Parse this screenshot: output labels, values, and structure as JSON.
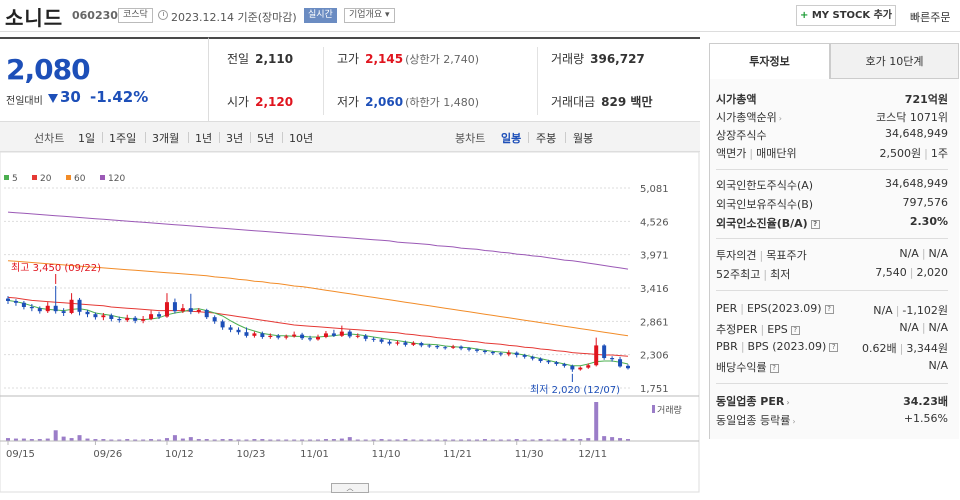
{
  "header": {
    "name": "소니드",
    "code": "060230",
    "market": "코스닥",
    "base_date": "2023.12.14 기준(장마감)",
    "realtime": "실시간",
    "company_overview": "기업개요 ▾",
    "mystock_label": "MY STOCK 추가",
    "quick_order": "빠른주문"
  },
  "price": {
    "current": "2,080",
    "change_label": "전일대비",
    "change": "30",
    "change_pct": "-1.42%"
  },
  "stats": {
    "prev_label": "전일",
    "prev": "2,110",
    "high_label": "고가",
    "high": "2,145",
    "upper_limit": "(상한가 2,740)",
    "volume_label": "거래량",
    "volume": "396,727",
    "open_label": "시가",
    "open": "2,120",
    "low_label": "저가",
    "low": "2,060",
    "lower_limit": "(하한가 1,480)",
    "amount_label": "거래대금",
    "amount": "829 백만"
  },
  "toolbar": {
    "line_label": "선차트",
    "periods": [
      "1일",
      "1주일",
      "3개월",
      "1년",
      "3년",
      "5년",
      "10년"
    ],
    "candle_label": "봉차트",
    "candles": [
      "일봉",
      "주봉",
      "월봉"
    ],
    "active_candle": "일봉"
  },
  "chart_data": {
    "type": "candlestick",
    "legend": [
      "5",
      "20",
      "60",
      "120"
    ],
    "legend_colors": [
      "#4caf50",
      "#e53935",
      "#f28c28",
      "#9b59b6"
    ],
    "y_ticks": [
      "5,081",
      "4,526",
      "3,971",
      "3,416",
      "2,861",
      "2,306",
      "1,751"
    ],
    "y_tick_values": [
      5081,
      4526,
      3971,
      3416,
      2861,
      2306,
      1751
    ],
    "x_labels": [
      "09/15",
      "09/26",
      "10/12",
      "10/23",
      "11/01",
      "11/10",
      "11/21",
      "11/30",
      "12/11"
    ],
    "volume_label": "거래량",
    "high_annotation": "최고 3,450 (09/22)",
    "low_annotation": "최저 2,020 (12/07)",
    "candles": [
      {
        "o": 3240,
        "c": 3200,
        "h": 3280,
        "l": 3150
      },
      {
        "o": 3200,
        "c": 3170,
        "h": 3230,
        "l": 3120
      },
      {
        "o": 3170,
        "c": 3100,
        "h": 3200,
        "l": 3060
      },
      {
        "o": 3100,
        "c": 3080,
        "h": 3150,
        "l": 3030
      },
      {
        "o": 3080,
        "c": 3030,
        "h": 3110,
        "l": 2990
      },
      {
        "o": 3030,
        "c": 3120,
        "h": 3180,
        "l": 3000
      },
      {
        "o": 3120,
        "c": 3030,
        "h": 3450,
        "l": 2990
      },
      {
        "o": 3030,
        "c": 3000,
        "h": 3080,
        "l": 2950
      },
      {
        "o": 3000,
        "c": 3220,
        "h": 3330,
        "l": 2980
      },
      {
        "o": 3220,
        "c": 3020,
        "h": 3250,
        "l": 2960
      },
      {
        "o": 3020,
        "c": 2980,
        "h": 3050,
        "l": 2930
      },
      {
        "o": 2980,
        "c": 2930,
        "h": 3010,
        "l": 2890
      },
      {
        "o": 2930,
        "c": 2960,
        "h": 3000,
        "l": 2880
      },
      {
        "o": 2960,
        "c": 2900,
        "h": 2990,
        "l": 2860
      },
      {
        "o": 2900,
        "c": 2880,
        "h": 2940,
        "l": 2840
      },
      {
        "o": 2880,
        "c": 2920,
        "h": 2970,
        "l": 2850
      },
      {
        "o": 2920,
        "c": 2870,
        "h": 2950,
        "l": 2830
      },
      {
        "o": 2870,
        "c": 2900,
        "h": 2950,
        "l": 2830
      },
      {
        "o": 2900,
        "c": 2980,
        "h": 3040,
        "l": 2880
      },
      {
        "o": 2980,
        "c": 2940,
        "h": 3020,
        "l": 2900
      },
      {
        "o": 2940,
        "c": 3180,
        "h": 3330,
        "l": 2920
      },
      {
        "o": 3180,
        "c": 3030,
        "h": 3240,
        "l": 2990
      },
      {
        "o": 3030,
        "c": 3080,
        "h": 3150,
        "l": 3000
      },
      {
        "o": 3080,
        "c": 3020,
        "h": 3320,
        "l": 2980
      },
      {
        "o": 3020,
        "c": 3050,
        "h": 3080,
        "l": 2990
      },
      {
        "o": 3050,
        "c": 2930,
        "h": 3070,
        "l": 2900
      },
      {
        "o": 2930,
        "c": 2860,
        "h": 2960,
        "l": 2820
      },
      {
        "o": 2860,
        "c": 2760,
        "h": 2890,
        "l": 2720
      },
      {
        "o": 2760,
        "c": 2720,
        "h": 2800,
        "l": 2680
      },
      {
        "o": 2720,
        "c": 2680,
        "h": 2760,
        "l": 2640
      },
      {
        "o": 2680,
        "c": 2620,
        "h": 2760,
        "l": 2590
      },
      {
        "o": 2620,
        "c": 2660,
        "h": 2690,
        "l": 2590
      },
      {
        "o": 2660,
        "c": 2600,
        "h": 2690,
        "l": 2570
      },
      {
        "o": 2600,
        "c": 2620,
        "h": 2660,
        "l": 2570
      },
      {
        "o": 2620,
        "c": 2590,
        "h": 2650,
        "l": 2560
      },
      {
        "o": 2590,
        "c": 2610,
        "h": 2640,
        "l": 2560
      },
      {
        "o": 2610,
        "c": 2640,
        "h": 2690,
        "l": 2590
      },
      {
        "o": 2640,
        "c": 2580,
        "h": 2670,
        "l": 2550
      },
      {
        "o": 2580,
        "c": 2560,
        "h": 2620,
        "l": 2530
      },
      {
        "o": 2560,
        "c": 2600,
        "h": 2640,
        "l": 2540
      },
      {
        "o": 2600,
        "c": 2660,
        "h": 2700,
        "l": 2580
      },
      {
        "o": 2660,
        "c": 2620,
        "h": 2720,
        "l": 2600
      },
      {
        "o": 2620,
        "c": 2690,
        "h": 2790,
        "l": 2600
      },
      {
        "o": 2690,
        "c": 2610,
        "h": 2720,
        "l": 2580
      },
      {
        "o": 2610,
        "c": 2620,
        "h": 2660,
        "l": 2580
      },
      {
        "o": 2620,
        "c": 2570,
        "h": 2650,
        "l": 2530
      },
      {
        "o": 2570,
        "c": 2560,
        "h": 2600,
        "l": 2520
      },
      {
        "o": 2560,
        "c": 2520,
        "h": 2580,
        "l": 2490
      },
      {
        "o": 2520,
        "c": 2490,
        "h": 2550,
        "l": 2460
      },
      {
        "o": 2490,
        "c": 2510,
        "h": 2540,
        "l": 2460
      },
      {
        "o": 2510,
        "c": 2470,
        "h": 2540,
        "l": 2440
      },
      {
        "o": 2470,
        "c": 2500,
        "h": 2530,
        "l": 2450
      },
      {
        "o": 2500,
        "c": 2460,
        "h": 2520,
        "l": 2430
      },
      {
        "o": 2460,
        "c": 2450,
        "h": 2480,
        "l": 2420
      },
      {
        "o": 2450,
        "c": 2430,
        "h": 2470,
        "l": 2400
      },
      {
        "o": 2430,
        "c": 2420,
        "h": 2450,
        "l": 2390
      },
      {
        "o": 2420,
        "c": 2440,
        "h": 2470,
        "l": 2400
      },
      {
        "o": 2440,
        "c": 2410,
        "h": 2460,
        "l": 2380
      },
      {
        "o": 2410,
        "c": 2390,
        "h": 2430,
        "l": 2360
      },
      {
        "o": 2390,
        "c": 2370,
        "h": 2410,
        "l": 2340
      },
      {
        "o": 2370,
        "c": 2350,
        "h": 2390,
        "l": 2320
      },
      {
        "o": 2350,
        "c": 2330,
        "h": 2370,
        "l": 2300
      },
      {
        "o": 2330,
        "c": 2310,
        "h": 2350,
        "l": 2280
      },
      {
        "o": 2310,
        "c": 2340,
        "h": 2380,
        "l": 2280
      },
      {
        "o": 2340,
        "c": 2300,
        "h": 2360,
        "l": 2260
      },
      {
        "o": 2300,
        "c": 2270,
        "h": 2320,
        "l": 2240
      },
      {
        "o": 2270,
        "c": 2240,
        "h": 2290,
        "l": 2210
      },
      {
        "o": 2240,
        "c": 2200,
        "h": 2260,
        "l": 2170
      },
      {
        "o": 2200,
        "c": 2180,
        "h": 2220,
        "l": 2150
      },
      {
        "o": 2180,
        "c": 2150,
        "h": 2200,
        "l": 2120
      },
      {
        "o": 2150,
        "c": 2120,
        "h": 2170,
        "l": 2090
      },
      {
        "o": 2120,
        "c": 2060,
        "h": 2140,
        "l": 2020
      },
      {
        "o": 2060,
        "c": 2090,
        "h": 2110,
        "l": 2040
      },
      {
        "o": 2090,
        "c": 2130,
        "h": 2160,
        "l": 2070
      },
      {
        "o": 2130,
        "c": 2460,
        "h": 2590,
        "l": 2110
      },
      {
        "o": 2460,
        "c": 2250,
        "h": 2480,
        "l": 2220
      },
      {
        "o": 2250,
        "c": 2230,
        "h": 2280,
        "l": 2190
      },
      {
        "o": 2230,
        "c": 2110,
        "h": 2270,
        "l": 2090
      },
      {
        "o": 2120,
        "c": 2080,
        "h": 2145,
        "l": 2060
      }
    ],
    "ma5": [
      3210,
      3190,
      3160,
      3120,
      3080,
      3060,
      3050,
      3040,
      3060,
      3070,
      3050,
      3000,
      2980,
      2960,
      2930,
      2910,
      2900,
      2890,
      2900,
      2920,
      2970,
      3000,
      3020,
      3060,
      3070,
      3040,
      3000,
      2950,
      2870,
      2800,
      2740,
      2700,
      2660,
      2640,
      2620,
      2620,
      2610,
      2610,
      2600,
      2600,
      2610,
      2620,
      2640,
      2650,
      2640,
      2620,
      2600,
      2580,
      2560,
      2540,
      2520,
      2500,
      2480,
      2480,
      2470,
      2450,
      2440,
      2430,
      2420,
      2400,
      2380,
      2360,
      2350,
      2340,
      2320,
      2300,
      2270,
      2240,
      2210,
      2180,
      2150,
      2120,
      2120,
      2150,
      2190,
      2200,
      2200,
      2180,
      2150
    ],
    "ma20": [
      3260,
      3250,
      3230,
      3210,
      3200,
      3190,
      3180,
      3170,
      3160,
      3150,
      3140,
      3130,
      3120,
      3100,
      3090,
      3080,
      3070,
      3060,
      3050,
      3040,
      3040,
      3040,
      3040,
      3030,
      3020,
      3010,
      3000,
      2980,
      2960,
      2940,
      2920,
      2900,
      2880,
      2860,
      2840,
      2820,
      2800,
      2790,
      2780,
      2770,
      2760,
      2750,
      2740,
      2730,
      2720,
      2710,
      2700,
      2690,
      2680,
      2670,
      2650,
      2640,
      2620,
      2610,
      2590,
      2580,
      2560,
      2550,
      2530,
      2520,
      2500,
      2490,
      2480,
      2460,
      2450,
      2430,
      2420,
      2400,
      2390,
      2370,
      2360,
      2340,
      2330,
      2320,
      2310,
      2300,
      2300,
      2290,
      2280
    ],
    "ma60": [
      3870,
      3860,
      3850,
      3840,
      3830,
      3820,
      3810,
      3800,
      3790,
      3780,
      3770,
      3760,
      3750,
      3740,
      3730,
      3720,
      3710,
      3700,
      3690,
      3680,
      3670,
      3660,
      3650,
      3640,
      3630,
      3620,
      3600,
      3590,
      3580,
      3560,
      3550,
      3530,
      3520,
      3500,
      3490,
      3470,
      3450,
      3440,
      3420,
      3400,
      3380,
      3360,
      3340,
      3320,
      3300,
      3280,
      3260,
      3240,
      3220,
      3200,
      3180,
      3160,
      3140,
      3120,
      3100,
      3080,
      3060,
      3040,
      3020,
      3000,
      2980,
      2960,
      2940,
      2920,
      2900,
      2880,
      2860,
      2840,
      2820,
      2800,
      2780,
      2760,
      2740,
      2720,
      2700,
      2680,
      2660,
      2640,
      2620
    ],
    "ma120": [
      4680,
      4670,
      4660,
      4650,
      4640,
      4630,
      4620,
      4610,
      4600,
      4590,
      4580,
      4570,
      4560,
      4550,
      4540,
      4530,
      4520,
      4510,
      4500,
      4490,
      4480,
      4470,
      4460,
      4450,
      4440,
      4430,
      4420,
      4410,
      4400,
      4390,
      4380,
      4370,
      4360,
      4350,
      4340,
      4330,
      4320,
      4310,
      4300,
      4290,
      4280,
      4270,
      4260,
      4250,
      4240,
      4230,
      4220,
      4210,
      4200,
      4180,
      4170,
      4160,
      4150,
      4140,
      4120,
      4110,
      4100,
      4080,
      4070,
      4060,
      4040,
      4030,
      4010,
      4000,
      3980,
      3970,
      3950,
      3940,
      3920,
      3900,
      3880,
      3870,
      3850,
      3830,
      3810,
      3790,
      3770,
      3750,
      3730
    ],
    "volumes": [
      6,
      5,
      5,
      4,
      4,
      5,
      22,
      9,
      6,
      12,
      5,
      4,
      4,
      3,
      3,
      4,
      3,
      3,
      4,
      3,
      6,
      12,
      5,
      8,
      4,
      4,
      3,
      4,
      4,
      3,
      3,
      4,
      4,
      3,
      3,
      3,
      3,
      3,
      3,
      3,
      4,
      4,
      5,
      8,
      3,
      3,
      3,
      4,
      3,
      3,
      4,
      3,
      3,
      3,
      3,
      3,
      3,
      3,
      3,
      3,
      4,
      3,
      3,
      3,
      4,
      3,
      3,
      4,
      3,
      3,
      5,
      4,
      4,
      6,
      80,
      10,
      8,
      6,
      4
    ]
  },
  "right_panel": {
    "tab_active": "투자정보",
    "tab_inactive": "호가 10단계",
    "rows": {
      "mcap_label": "시가총액",
      "mcap": "721억원",
      "mcap_rank_label": "시가총액순위",
      "mcap_rank": "코스닥 1071위",
      "shares_label": "상장주식수",
      "shares": "34,648,949",
      "face_label": "액면가",
      "face_label2": "매매단위",
      "face": "2,500원",
      "unit": "1주",
      "foreign_limit_label": "외국인한도주식수(A)",
      "foreign_limit": "34,648,949",
      "foreign_hold_label": "외국인보유주식수(B)",
      "foreign_hold": "797,576",
      "foreign_rate_label": "외국인소진율(B/A)",
      "foreign_rate": "2.30%",
      "opinion_label": "투자의견",
      "opinion_label2": "목표주가",
      "opinion": "N/A",
      "target": "N/A",
      "w52_label": "52주최고",
      "w52_label2": "최저",
      "w52_high": "7,540",
      "w52_low": "2,020",
      "per_label": "PER",
      "eps_label": "EPS(2023.09)",
      "per": "N/A",
      "eps": "-1,102원",
      "est_per_label": "추정PER",
      "est_eps_label": "EPS",
      "est_per": "N/A",
      "est_eps": "N/A",
      "pbr_label": "PBR",
      "bps_label": "BPS (2023.09)",
      "pbr": "0.62배",
      "bps": "3,344원",
      "div_label": "배당수익률",
      "div": "N/A",
      "sector_per_label": "동일업종 PER",
      "sector_per": "34.23배",
      "sector_rate_label": "동일업종 등락률",
      "sector_rate": "+1.56%"
    }
  }
}
